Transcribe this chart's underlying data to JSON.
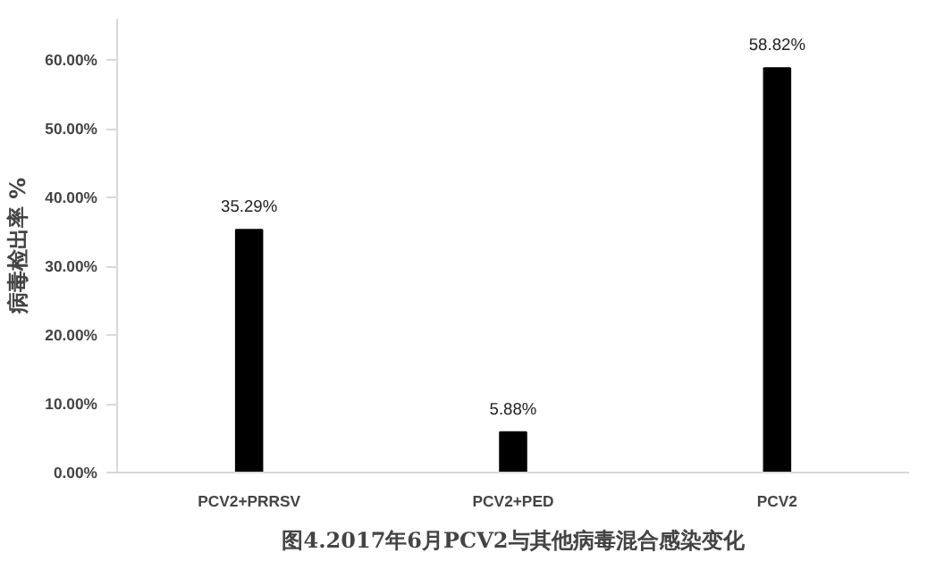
{
  "chart_data": {
    "type": "bar",
    "title": "图4.2017年6月PCV2与其他病毒混合感染变化",
    "ylabel": "病毒检出率 %",
    "categories": [
      "PCV2+PRRSV",
      "PCV2+PED",
      "PCV2"
    ],
    "values": [
      35.29,
      5.88,
      58.82
    ],
    "color": "#000000",
    "value_labels": [
      "35.29%",
      "5.88%",
      "58.82%"
    ],
    "ylim": [
      0,
      66
    ],
    "yticks": [
      {
        "value": 0,
        "label": "0.00%"
      },
      {
        "value": 10,
        "label": "10.00%"
      },
      {
        "value": 20,
        "label": "20.00%"
      },
      {
        "value": 30,
        "label": "30.00%"
      },
      {
        "value": 40,
        "label": "40.00%"
      },
      {
        "value": 50,
        "label": "50.00%"
      },
      {
        "value": 60,
        "label": "60.00%"
      }
    ],
    "grid": false
  }
}
